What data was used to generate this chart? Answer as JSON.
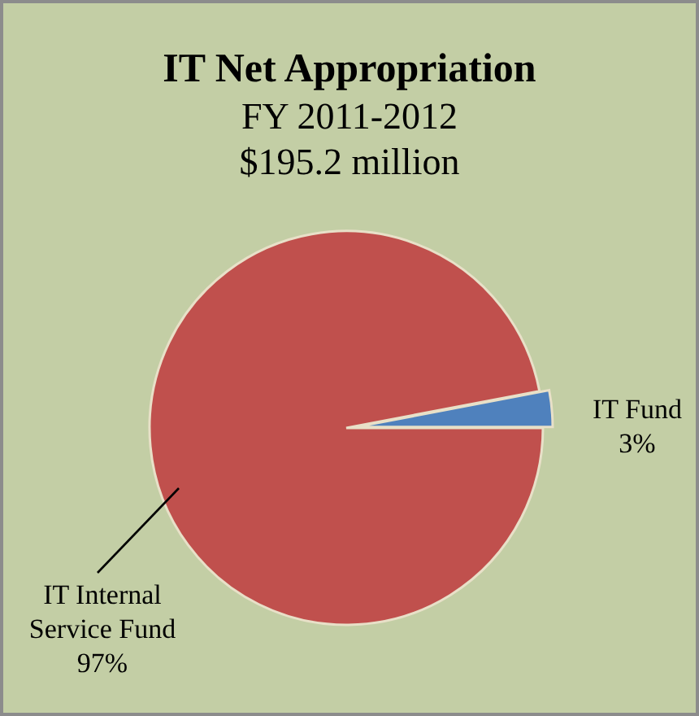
{
  "chart_data": {
    "type": "pie",
    "title": "IT Net Appropriation",
    "subtitle": "FY 2011-2012\n$195.2 million",
    "categories": [
      "IT Fund",
      "IT Internal Service Fund"
    ],
    "values": [
      3,
      97
    ],
    "value_labels": [
      "3%",
      "97%"
    ],
    "colors": [
      "#4f81bd",
      "#c0504d"
    ]
  }
}
